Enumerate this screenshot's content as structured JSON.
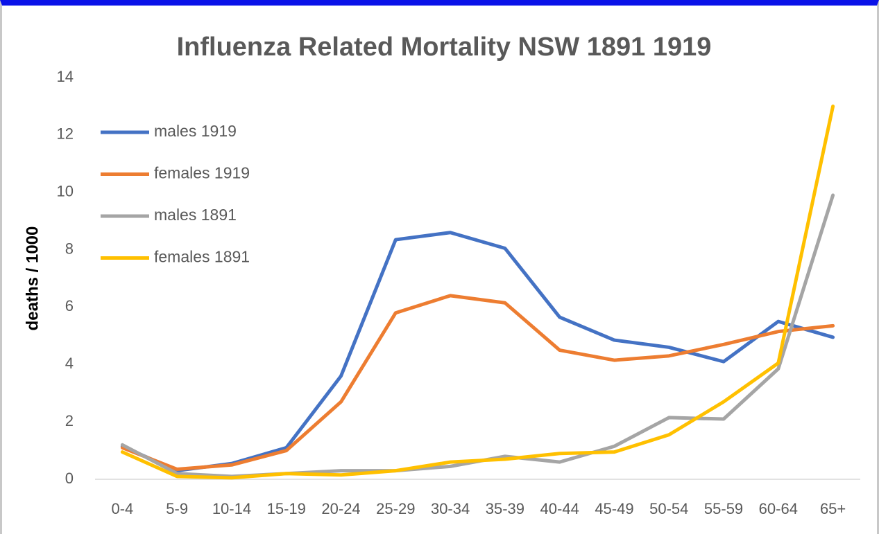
{
  "chart_data": {
    "type": "line",
    "title": "Influenza Related Mortality NSW 1891 1919",
    "y_label": "deaths / 1000",
    "categories": [
      "0-4",
      "5-9",
      "10-14",
      "15-19",
      "20-24",
      "25-29",
      "30-34",
      "35-39",
      "40-44",
      "45-49",
      "50-54",
      "55-59",
      "60-64",
      "65+"
    ],
    "series": [
      {
        "name": "males 1919",
        "color": "#4472c4",
        "values": [
          1.15,
          0.3,
          0.55,
          1.1,
          3.6,
          8.35,
          8.6,
          8.05,
          5.65,
          4.85,
          4.6,
          4.1,
          5.5,
          4.95
        ]
      },
      {
        "name": "females 1919",
        "color": "#ed7d31",
        "values": [
          1.1,
          0.35,
          0.5,
          1.0,
          2.7,
          5.8,
          6.4,
          6.15,
          4.5,
          4.15,
          4.3,
          4.7,
          5.15,
          5.35
        ]
      },
      {
        "name": "males 1891",
        "color": "#a5a5a5",
        "values": [
          1.2,
          0.2,
          0.1,
          0.2,
          0.3,
          0.3,
          0.45,
          0.8,
          0.6,
          1.15,
          2.15,
          2.1,
          3.85,
          9.9
        ]
      },
      {
        "name": "females 1891",
        "color": "#ffc000",
        "values": [
          0.95,
          0.1,
          0.05,
          0.2,
          0.15,
          0.3,
          0.6,
          0.7,
          0.9,
          0.95,
          1.55,
          2.7,
          4.05,
          13.0
        ]
      }
    ],
    "ylim": [
      0,
      14
    ],
    "yticks": [
      0,
      2,
      4,
      6,
      8,
      10,
      12,
      14
    ],
    "grid": false,
    "legend": "upper left"
  }
}
